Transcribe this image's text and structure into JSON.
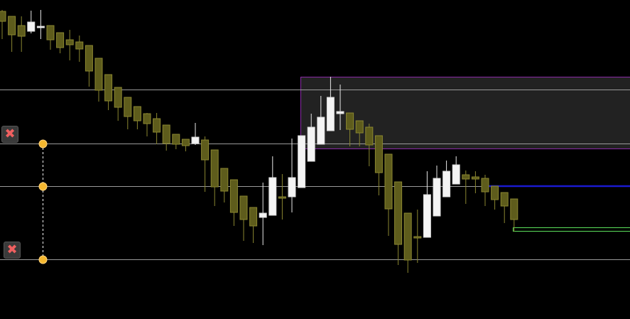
{
  "chart_data": {
    "type": "candlestick",
    "title": "",
    "xlabel": "",
    "ylabel": "",
    "ylim": [
      0,
      449
    ],
    "grid": false,
    "colors": {
      "background": "#000000",
      "bull_body": "#f4f4f4",
      "bear_body": "#5e5c1c",
      "bear_border": "#8a8630",
      "level_line": "#9a9a9a",
      "zone_fill": "#222222",
      "zone_border": "#8a2aa8",
      "blue_line": "#1a1ad0",
      "green_line": "#5ce05c",
      "anchor_dot": "#f5b830"
    },
    "candles": [
      [
        433,
        435,
        394,
        419
      ],
      [
        426,
        426,
        376,
        400
      ],
      [
        413,
        426,
        376,
        398
      ],
      [
        405,
        434,
        402,
        418
      ],
      [
        412,
        435,
        394,
        412
      ],
      [
        413,
        413,
        379,
        393
      ],
      [
        403,
        403,
        374,
        382
      ],
      [
        393,
        407,
        364,
        386
      ],
      [
        390,
        399,
        362,
        380
      ],
      [
        385,
        385,
        327,
        349
      ],
      [
        367,
        367,
        306,
        322
      ],
      [
        344,
        344,
        294,
        307
      ],
      [
        326,
        326,
        279,
        298
      ],
      [
        312,
        312,
        267,
        285
      ],
      [
        299,
        299,
        267,
        279
      ],
      [
        289,
        290,
        257,
        275
      ],
      [
        282,
        290,
        246,
        263
      ],
      [
        273,
        273,
        237,
        247
      ],
      [
        260,
        260,
        239,
        246
      ],
      [
        253,
        253,
        236,
        244
      ],
      [
        247,
        276,
        245,
        256
      ],
      [
        252,
        257,
        179,
        224
      ],
      [
        238,
        238,
        159,
        186
      ],
      [
        212,
        212,
        164,
        180
      ],
      [
        196,
        196,
        131,
        150
      ],
      [
        173,
        173,
        110,
        140
      ],
      [
        157,
        157,
        107,
        131
      ],
      [
        143,
        192,
        104,
        149
      ],
      [
        146,
        229,
        146,
        199
      ],
      [
        172,
        204,
        140,
        171
      ],
      [
        172,
        254,
        150,
        199
      ],
      [
        185,
        258,
        185,
        258
      ],
      [
        222,
        289,
        222,
        270
      ],
      [
        246,
        314,
        246,
        284
      ],
      [
        265,
        341,
        265,
        312
      ],
      [
        289,
        330,
        266,
        292
      ],
      [
        290,
        290,
        243,
        267
      ],
      [
        279,
        279,
        243,
        262
      ],
      [
        270,
        275,
        215,
        245
      ],
      [
        258,
        258,
        174,
        206
      ],
      [
        232,
        232,
        117,
        155
      ],
      [
        193,
        193,
        76,
        105
      ],
      [
        149,
        149,
        65,
        83
      ],
      [
        116,
        154,
        79,
        115
      ],
      [
        115,
        208,
        115,
        175
      ],
      [
        145,
        216,
        145,
        198
      ],
      [
        172,
        223,
        172,
        208
      ],
      [
        190,
        229,
        190,
        217
      ],
      [
        203,
        209,
        162,
        197
      ],
      [
        200,
        208,
        177,
        197
      ],
      [
        198,
        203,
        159,
        179
      ],
      [
        187,
        187,
        154,
        168
      ],
      [
        178,
        178,
        135,
        159
      ],
      [
        169,
        169,
        123,
        140
      ]
    ],
    "doji_white": [
      4
    ],
    "levels": [
      323,
      247,
      187,
      84
    ],
    "zone": {
      "top": 341,
      "bottom": 240
    },
    "blue_level": 187,
    "green_levels": [
      129,
      124
    ],
    "anchor_levels": [
      247,
      187,
      84
    ]
  },
  "buttons": {
    "delete_icon": "✖"
  }
}
